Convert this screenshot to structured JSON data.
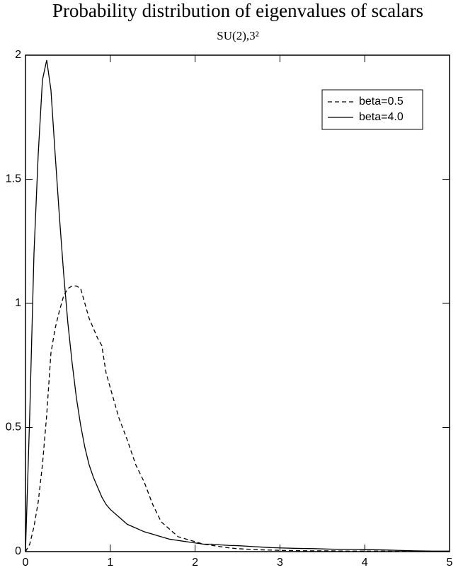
{
  "chart_data": {
    "type": "line",
    "title": "Probability distribution of eigenvalues of scalars",
    "subtitle": "SU(2),3²",
    "x": [
      0,
      0.05,
      0.1,
      0.15,
      0.2,
      0.25,
      0.3,
      0.35,
      0.4,
      0.45,
      0.5,
      0.55,
      0.6,
      0.65,
      0.7,
      0.75,
      0.8,
      0.85,
      0.9,
      0.95,
      1.0,
      1.1,
      1.2,
      1.3,
      1.4,
      1.5,
      1.6,
      1.7,
      1.8,
      1.9,
      2.0,
      2.1,
      2.2,
      2.3,
      2.4,
      2.5,
      2.6,
      2.7,
      2.8,
      2.9,
      3.0,
      3.2,
      3.4,
      3.6,
      3.8,
      4.0,
      4.2,
      4.4,
      4.6,
      4.8,
      5.0
    ],
    "series": [
      {
        "name": "beta=0.5",
        "color": "#000000",
        "line_style": "dashed",
        "values": [
          0,
          0.03,
          0.1,
          0.2,
          0.35,
          0.55,
          0.8,
          0.9,
          0.97,
          1.03,
          1.06,
          1.07,
          1.07,
          1.06,
          1.0,
          0.94,
          0.9,
          0.86,
          0.83,
          0.72,
          0.66,
          0.54,
          0.45,
          0.35,
          0.28,
          0.19,
          0.12,
          0.09,
          0.06,
          0.05,
          0.04,
          0.03,
          0.025,
          0.02,
          0.015,
          0.012,
          0.01,
          0.008,
          0.007,
          0.006,
          0.005,
          0.004,
          0.003,
          0.003,
          0.002,
          0.002,
          0.002,
          0.001,
          0.001,
          0.001,
          0
        ]
      },
      {
        "name": "beta=4.0",
        "color": "#000000",
        "line_style": "solid",
        "values": [
          0,
          0.55,
          1.2,
          1.6,
          1.9,
          1.98,
          1.86,
          1.6,
          1.35,
          1.12,
          0.92,
          0.76,
          0.62,
          0.51,
          0.42,
          0.35,
          0.3,
          0.26,
          0.22,
          0.19,
          0.17,
          0.14,
          0.11,
          0.095,
          0.08,
          0.07,
          0.06,
          0.05,
          0.045,
          0.04,
          0.035,
          0.03,
          0.03,
          0.027,
          0.025,
          0.024,
          0.022,
          0.02,
          0.018,
          0.016,
          0.015,
          0.013,
          0.012,
          0.01,
          0.009,
          0.008,
          0.007,
          0.005,
          0.003,
          0.002,
          0.002
        ]
      }
    ],
    "xlim": [
      0,
      5
    ],
    "xticks": [
      0,
      1,
      2,
      3,
      4,
      5
    ],
    "ylim": [
      0,
      2
    ],
    "yticks": [
      0,
      0.5,
      1,
      1.5,
      2
    ],
    "grid": false,
    "legend": "top-right"
  }
}
